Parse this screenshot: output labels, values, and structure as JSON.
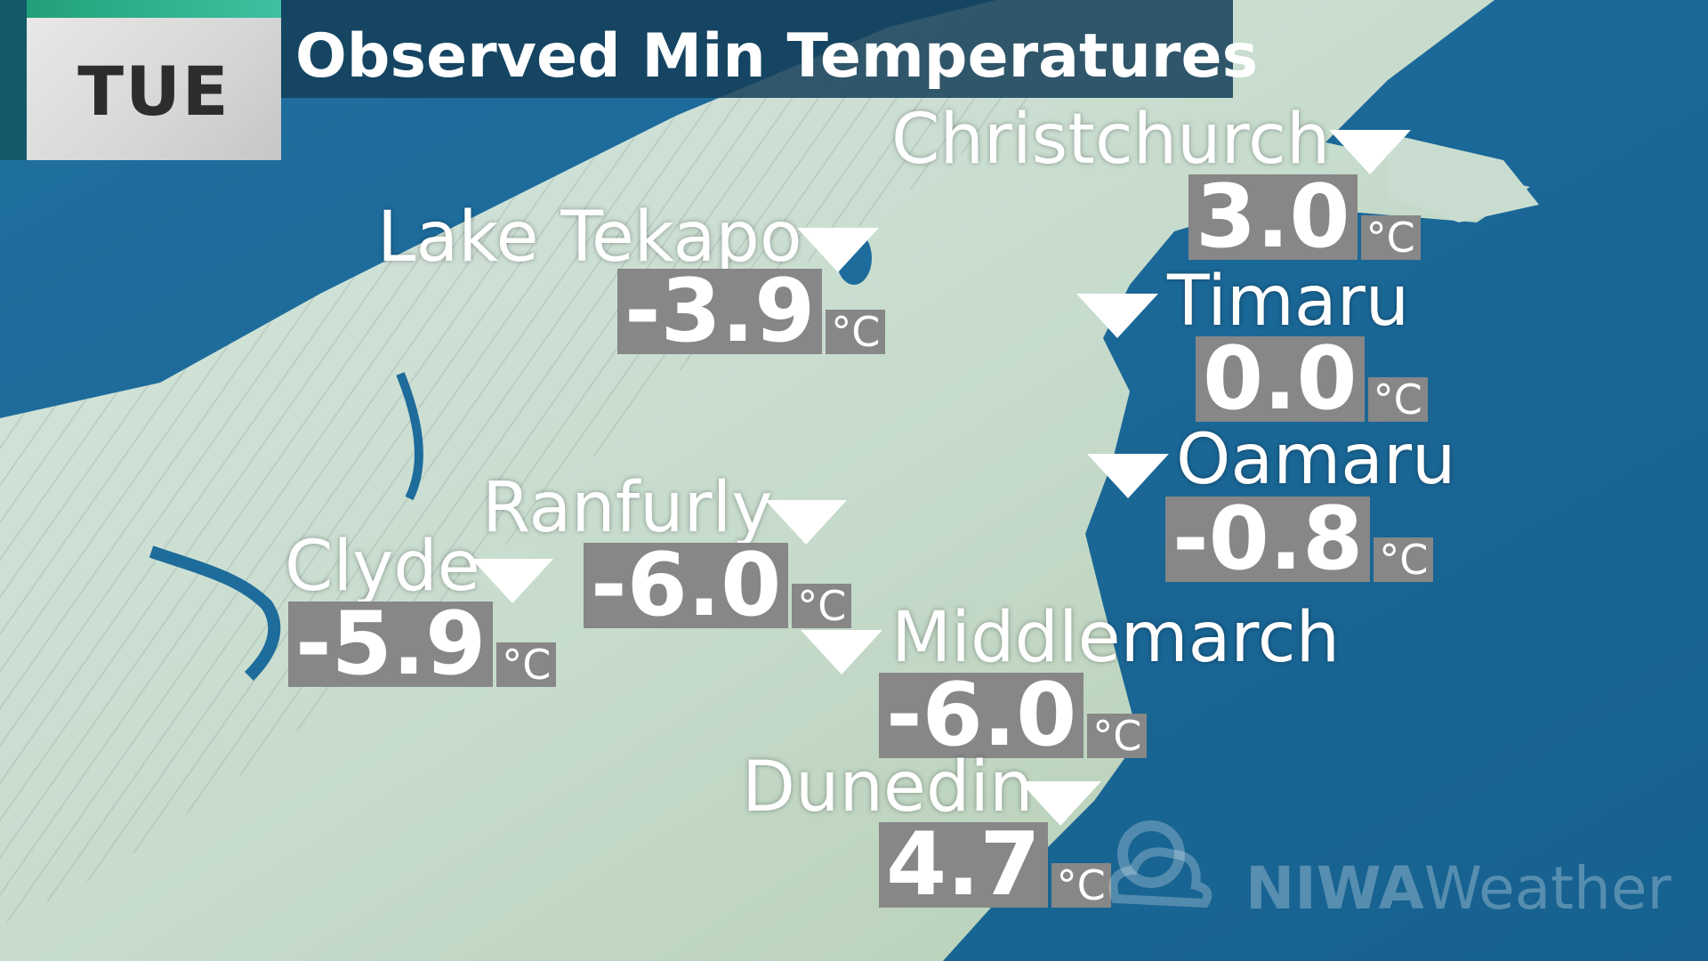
{
  "header": {
    "day": "TUE",
    "title": "Observed Min Temperatures"
  },
  "unit": "°C",
  "stations": [
    {
      "name": "Christchurch",
      "value": "3.0"
    },
    {
      "name": "Lake Tekapo",
      "value": "-3.9"
    },
    {
      "name": "Timaru",
      "value": "0.0"
    },
    {
      "name": "Oamaru",
      "value": "-0.8"
    },
    {
      "name": "Ranfurly",
      "value": "-6.0"
    },
    {
      "name": "Clyde",
      "value": "-5.9"
    },
    {
      "name": "Middlemarch",
      "value": "-6.0"
    },
    {
      "name": "Dunedin",
      "value": "4.7"
    }
  ],
  "logo": {
    "brand_bold": "NIWA",
    "brand_light": "Weather"
  },
  "colors": {
    "sea": "#1a6c9e",
    "land": "#c9ddd0",
    "temp_box": "#878787",
    "title_bar": "#143e58"
  }
}
